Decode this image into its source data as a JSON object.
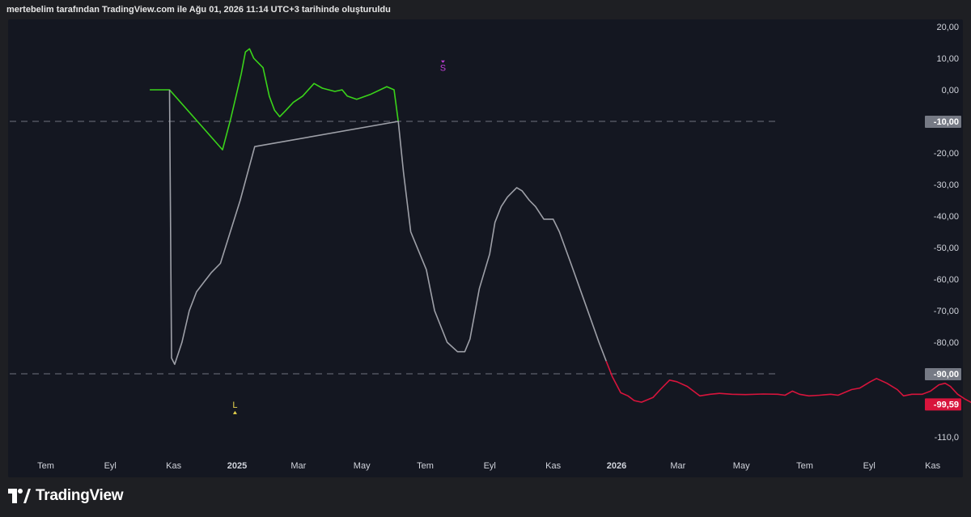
{
  "header": {
    "text": "mertebelim tarafından TradingView.com ile Ağu 01, 2026 11:14 UTC+3 tarihinde oluşturuldu"
  },
  "footer": {
    "brand": "TradingView"
  },
  "colors": {
    "background": "#141721",
    "page": "#1e1f23",
    "green": "#3ad41a",
    "gray": "#9ea0a8",
    "red": "#d8143c",
    "dashed": "#6f7380",
    "s_marker": "#c23fd9",
    "l_marker": "#e8d44d"
  },
  "chart_data": {
    "type": "line",
    "title": "",
    "ylim": [
      -115,
      22
    ],
    "y_ticks": [
      {
        "value": 20,
        "label": "20,00"
      },
      {
        "value": 10,
        "label": "10,00"
      },
      {
        "value": 0,
        "label": "0,00"
      },
      {
        "value": -20,
        "label": "-20,00"
      },
      {
        "value": -30,
        "label": "-30,00"
      },
      {
        "value": -40,
        "label": "-40,00"
      },
      {
        "value": -50,
        "label": "-50,00"
      },
      {
        "value": -60,
        "label": "-60,00"
      },
      {
        "value": -70,
        "label": "-70,00"
      },
      {
        "value": -80,
        "label": "-80,00"
      },
      {
        "value": -110,
        "label": "-110,0"
      }
    ],
    "x_ticks": [
      {
        "date": "2024-07",
        "label": "Tem",
        "bold": false
      },
      {
        "date": "2024-09",
        "label": "Eyl",
        "bold": false
      },
      {
        "date": "2024-11",
        "label": "Kas",
        "bold": false
      },
      {
        "date": "2025-01",
        "label": "2025",
        "bold": true
      },
      {
        "date": "2025-03",
        "label": "Mar",
        "bold": false
      },
      {
        "date": "2025-05",
        "label": "May",
        "bold": false
      },
      {
        "date": "2025-07",
        "label": "Tem",
        "bold": false
      },
      {
        "date": "2025-09",
        "label": "Eyl",
        "bold": false
      },
      {
        "date": "2025-11",
        "label": "Kas",
        "bold": false
      },
      {
        "date": "2026-01",
        "label": "2026",
        "bold": true
      },
      {
        "date": "2026-03",
        "label": "Mar",
        "bold": false
      },
      {
        "date": "2026-05",
        "label": "May",
        "bold": false
      },
      {
        "date": "2026-07",
        "label": "Tem",
        "bold": false
      },
      {
        "date": "2026-09",
        "label": "Eyl",
        "bold": false
      },
      {
        "date": "2026-11",
        "label": "Kas",
        "bold": false
      }
    ],
    "hlines": [
      {
        "value": -10,
        "label": "-10,00"
      },
      {
        "value": -90,
        "label": "-90,00"
      }
    ],
    "last_value": {
      "value": -99.59,
      "label": "-99,59"
    },
    "markers": [
      {
        "label": "S",
        "date": "2025-07-18",
        "value": 7
      },
      {
        "label": "L",
        "date": "2024-12-30",
        "value": -101
      }
    ],
    "series": [
      {
        "color": "green",
        "points": [
          [
            "2024-10-09",
            0
          ],
          [
            "2024-10-28",
            0
          ],
          [
            "2024-12-18",
            -19
          ],
          [
            "2024-12-26",
            -9
          ],
          [
            "2025-01-05",
            5
          ],
          [
            "2025-01-09",
            12
          ],
          [
            "2025-01-13",
            13
          ],
          [
            "2025-01-17",
            10
          ],
          [
            "2025-01-26",
            7
          ],
          [
            "2025-02-01",
            -2
          ],
          [
            "2025-02-06",
            -6.5
          ],
          [
            "2025-02-11",
            -8.5
          ],
          [
            "2025-02-17",
            -6.5
          ],
          [
            "2025-02-24",
            -4
          ],
          [
            "2025-03-05",
            -2
          ],
          [
            "2025-03-16",
            2
          ],
          [
            "2025-03-24",
            0.5
          ],
          [
            "2025-04-05",
            -0.5
          ],
          [
            "2025-04-12",
            0
          ],
          [
            "2025-04-17",
            -2
          ],
          [
            "2025-04-26",
            -3
          ],
          [
            "2025-05-09",
            -1.5
          ],
          [
            "2025-05-25",
            1
          ],
          [
            "2025-06-01",
            0
          ],
          [
            "2025-06-05",
            -10
          ]
        ]
      },
      {
        "color": "gray",
        "points": [
          [
            "2024-10-28",
            0
          ],
          [
            "2024-10-30",
            -85
          ],
          [
            "2024-11-02",
            -87
          ],
          [
            "2024-11-09",
            -80
          ],
          [
            "2024-11-16",
            -70
          ],
          [
            "2024-11-23",
            -64
          ],
          [
            "2024-12-07",
            -58
          ],
          [
            "2024-12-16",
            -55
          ],
          [
            "2025-01-04",
            -35
          ],
          [
            "2025-01-18",
            -18
          ],
          [
            "2025-06-05",
            -10
          ],
          [
            "2025-06-10",
            -26
          ],
          [
            "2025-06-17",
            -45
          ],
          [
            "2025-07-02",
            -57
          ],
          [
            "2025-07-10",
            -70
          ],
          [
            "2025-07-22",
            -80
          ],
          [
            "2025-08-01",
            -83
          ],
          [
            "2025-08-08",
            -83
          ],
          [
            "2025-08-13",
            -79
          ],
          [
            "2025-08-22",
            -63
          ],
          [
            "2025-09-01",
            -52
          ],
          [
            "2025-09-06",
            -42
          ],
          [
            "2025-09-12",
            -37
          ],
          [
            "2025-09-18",
            -34
          ],
          [
            "2025-09-27",
            -31
          ],
          [
            "2025-10-02",
            -32
          ],
          [
            "2025-10-09",
            -35
          ],
          [
            "2025-10-15",
            -37
          ],
          [
            "2025-10-23",
            -41
          ],
          [
            "2025-11-01",
            -41
          ],
          [
            "2025-11-07",
            -45
          ],
          [
            "2025-11-18",
            -55
          ],
          [
            "2025-12-01",
            -67
          ],
          [
            "2025-12-15",
            -80
          ],
          [
            "2025-12-22",
            -86
          ]
        ]
      },
      {
        "color": "red",
        "points": [
          [
            "2025-12-22",
            -86
          ],
          [
            "2025-12-28",
            -91
          ],
          [
            "2026-01-05",
            -96
          ],
          [
            "2026-01-12",
            -97
          ],
          [
            "2026-01-18",
            -98.5
          ],
          [
            "2026-01-25",
            -99
          ],
          [
            "2026-02-05",
            -97.5
          ],
          [
            "2026-02-12",
            -95
          ],
          [
            "2026-02-21",
            -92
          ],
          [
            "2026-02-28",
            -92.5
          ],
          [
            "2026-03-10",
            -94
          ],
          [
            "2026-03-22",
            -97
          ],
          [
            "2026-04-01",
            -96.5
          ],
          [
            "2026-04-10",
            -96.2
          ],
          [
            "2026-04-22",
            -96.5
          ],
          [
            "2026-05-05",
            -96.6
          ],
          [
            "2026-05-22",
            -96.4
          ],
          [
            "2026-06-05",
            -96.5
          ],
          [
            "2026-06-12",
            -96.8
          ],
          [
            "2026-06-19",
            -95.5
          ],
          [
            "2026-06-26",
            -96.5
          ],
          [
            "2026-07-05",
            -97
          ],
          [
            "2026-07-15",
            -96.8
          ],
          [
            "2026-07-26",
            -96.5
          ],
          [
            "2026-08-02",
            -96.8
          ],
          [
            "2026-08-15",
            -95
          ],
          [
            "2026-08-23",
            -94.5
          ],
          [
            "2026-09-02",
            -92.5
          ],
          [
            "2026-09-08",
            -91.5
          ],
          [
            "2026-09-18",
            -93
          ],
          [
            "2026-09-28",
            -95
          ],
          [
            "2026-10-04",
            -97
          ],
          [
            "2026-10-12",
            -96.5
          ],
          [
            "2026-10-22",
            -96.5
          ],
          [
            "2026-10-30",
            -95.5
          ],
          [
            "2026-11-07",
            -93.5
          ],
          [
            "2026-11-13",
            -93
          ],
          [
            "2026-11-18",
            -94
          ],
          [
            "2026-11-25",
            -96.5
          ],
          [
            "2026-12-02",
            -98
          ],
          [
            "2026-12-11",
            -99.59
          ]
        ]
      }
    ]
  }
}
